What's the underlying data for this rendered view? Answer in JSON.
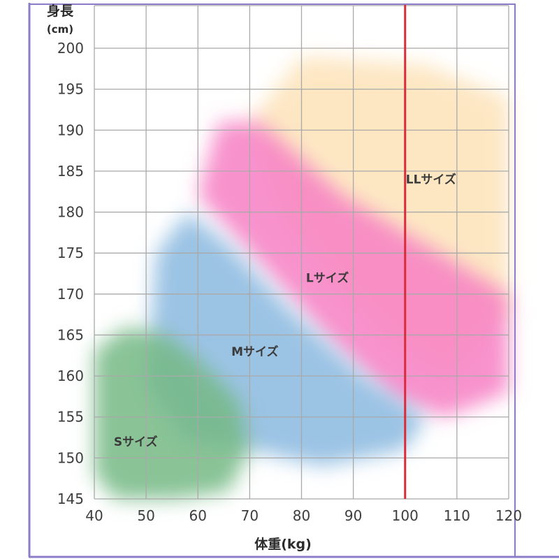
{
  "chart_data": {
    "type": "area",
    "ylabel": "身長",
    "ylabel_unit": "(cm)",
    "xlabel": "体重(kg)",
    "xlim": [
      40,
      120
    ],
    "ylim": [
      145,
      200
    ],
    "x_ticks": [
      40,
      50,
      60,
      70,
      80,
      90,
      100,
      110,
      120
    ],
    "y_ticks": [
      145,
      150,
      155,
      160,
      165,
      170,
      175,
      180,
      185,
      190,
      195,
      200
    ],
    "grid": true,
    "reference_line": {
      "x": 100,
      "color": "#d92b3a"
    },
    "zones": [
      {
        "name": "LLサイズ",
        "color": "#fde3b8",
        "polygon": [
          [
            70,
            191
          ],
          [
            80,
            199
          ],
          [
            104,
            198
          ],
          [
            120,
            194
          ],
          [
            120,
            168
          ],
          [
            108,
            160
          ],
          [
            96,
            165
          ],
          [
            78,
            178
          ]
        ],
        "label_at": [
          105,
          184
        ]
      },
      {
        "name": "Lサイズ",
        "color": "#f77fc4",
        "polygon": [
          [
            60,
            182
          ],
          [
            64,
            191
          ],
          [
            72,
            191
          ],
          [
            88,
            182
          ],
          [
            104,
            176
          ],
          [
            120,
            170
          ],
          [
            120,
            158
          ],
          [
            108,
            155
          ],
          [
            98,
            157
          ],
          [
            86,
            164
          ]
        ],
        "label_at": [
          85,
          172
        ]
      },
      {
        "name": "Mサイズ",
        "color": "#8ab8df",
        "polygon": [
          [
            50,
            159
          ],
          [
            52,
            175
          ],
          [
            58,
            180
          ],
          [
            66,
            176
          ],
          [
            78,
            168
          ],
          [
            92,
            160
          ],
          [
            104,
            155
          ],
          [
            100,
            151
          ],
          [
            84,
            149
          ],
          [
            70,
            151
          ],
          [
            58,
            152
          ]
        ],
        "label_at": [
          71,
          163
        ]
      },
      {
        "name": "Sサイズ",
        "color": "#74b884",
        "polygon": [
          [
            40,
            148
          ],
          [
            40,
            163
          ],
          [
            46,
            166
          ],
          [
            54,
            165
          ],
          [
            60,
            162
          ],
          [
            68,
            157
          ],
          [
            70,
            151
          ],
          [
            66,
            146
          ],
          [
            56,
            145
          ],
          [
            44,
            145
          ]
        ],
        "label_at": [
          48,
          152
        ]
      }
    ],
    "frame_color": "#8c7cc8"
  }
}
